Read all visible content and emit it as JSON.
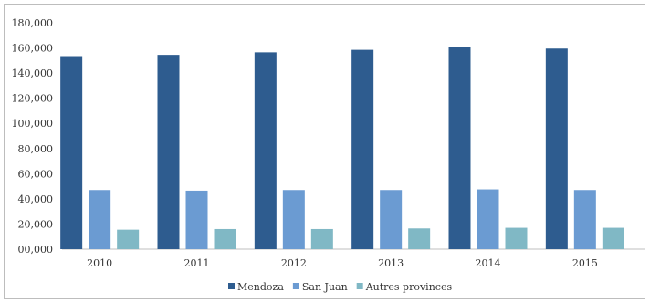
{
  "chart_data": {
    "type": "bar",
    "categories": [
      "2010",
      "2011",
      "2012",
      "2013",
      "2014",
      "2015"
    ],
    "series": [
      {
        "name": "Mendoza",
        "color": "#2e5c8f",
        "values": [
          153500,
          154500,
          156500,
          158500,
          160500,
          159500
        ]
      },
      {
        "name": "San Juan",
        "color": "#6b9bd2",
        "values": [
          47000,
          46500,
          47000,
          47000,
          47500,
          47000
        ]
      },
      {
        "name": "Autres provinces",
        "color": "#80b8c5",
        "values": [
          15500,
          16000,
          16000,
          16500,
          17000,
          17000
        ]
      }
    ],
    "yticks": [
      "00,000",
      "20,000",
      "40,000",
      "60,000",
      "80,000",
      "100,000",
      "120,000",
      "140,000",
      "160,000",
      "180,000"
    ],
    "ylim": [
      0,
      180000
    ],
    "legend_position": "bottom",
    "grid": false
  }
}
